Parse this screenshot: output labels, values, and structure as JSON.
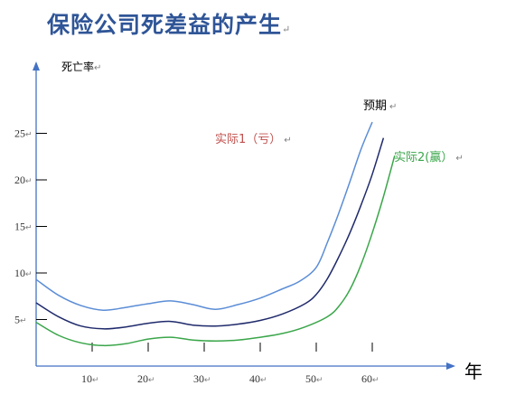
{
  "header": {
    "title": "保险公司死差益的产生",
    "para_mark": "↵"
  },
  "chart_data": {
    "type": "line",
    "title": "保险公司死差益的产生",
    "xlabel": "年",
    "ylabel": "死亡率",
    "xlim": [
      0,
      70
    ],
    "ylim": [
      0,
      28
    ],
    "x_ticks": [
      10,
      20,
      30,
      40,
      50,
      60
    ],
    "y_ticks": [
      5,
      10,
      15,
      20,
      25
    ],
    "grid": false,
    "series": [
      {
        "name": "实际1（亏）",
        "color": "#5b8dd6",
        "x": [
          0,
          4,
          8,
          12,
          16,
          20,
          24,
          28,
          32,
          36,
          40,
          44,
          47,
          50,
          52,
          54,
          56,
          58,
          60
        ],
        "y": [
          9.3,
          7.6,
          6.5,
          6.0,
          6.3,
          6.7,
          7.0,
          6.6,
          6.1,
          6.6,
          7.3,
          8.3,
          9.1,
          10.6,
          13.3,
          16.4,
          19.8,
          23.3,
          26.2
        ]
      },
      {
        "name": "预期",
        "color": "#1f2a6b",
        "x": [
          0,
          4,
          8,
          12,
          16,
          20,
          24,
          28,
          32,
          36,
          40,
          44,
          48,
          50,
          52,
          54,
          56,
          58,
          60,
          62
        ],
        "y": [
          6.8,
          5.3,
          4.3,
          4.0,
          4.2,
          4.6,
          4.8,
          4.4,
          4.3,
          4.5,
          4.9,
          5.6,
          6.7,
          7.7,
          9.4,
          11.7,
          14.3,
          17.3,
          20.6,
          24.5
        ]
      },
      {
        "name": "实际2(赢）",
        "color": "#3aa64a",
        "x": [
          0,
          4,
          8,
          12,
          16,
          20,
          24,
          28,
          32,
          36,
          40,
          44,
          48,
          52,
          54,
          56,
          58,
          60,
          62,
          64
        ],
        "y": [
          4.7,
          3.3,
          2.5,
          2.2,
          2.4,
          2.9,
          3.1,
          2.8,
          2.7,
          2.8,
          3.1,
          3.5,
          4.2,
          5.3,
          6.4,
          8.2,
          10.9,
          14.3,
          18.2,
          22.6
        ]
      }
    ],
    "annotations": [
      {
        "text": "实际1（亏）",
        "color": "#c0504d"
      },
      {
        "text": "预期",
        "color": "#000000"
      },
      {
        "text": "实际2(赢）",
        "color": "#3aa64a"
      }
    ]
  }
}
